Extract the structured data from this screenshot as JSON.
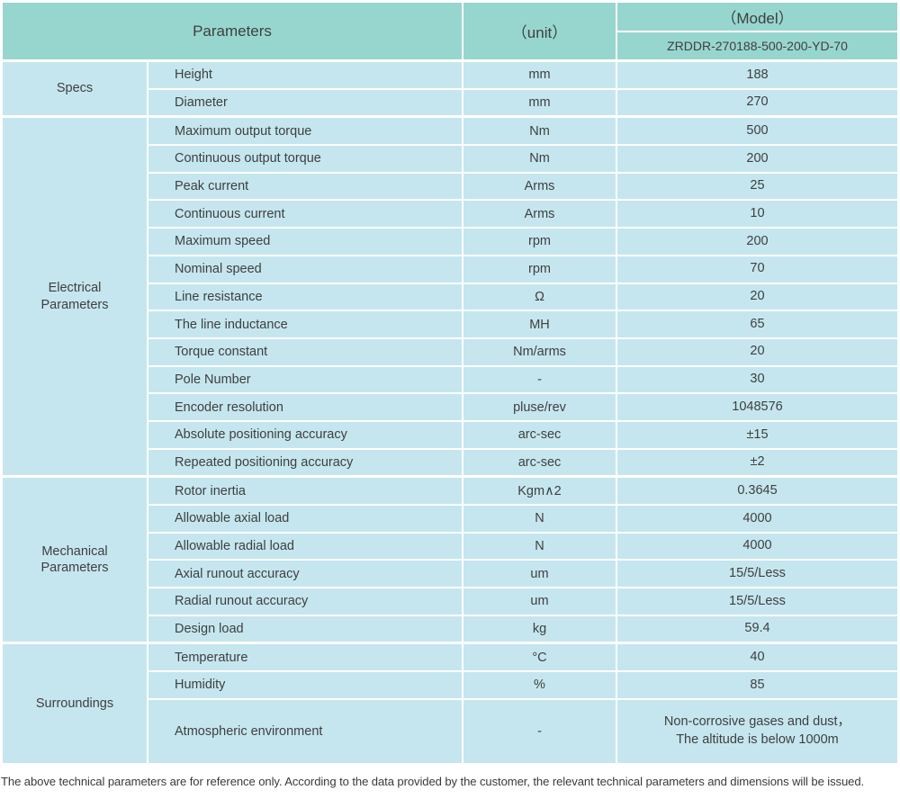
{
  "colors": {
    "header_bg": "#97d6ce",
    "body_bg": "#c5e6ef",
    "text": "#3f3f3f"
  },
  "header": {
    "parameters_label": "Parameters",
    "unit_label": "（unit）",
    "model_label": "（Model）",
    "model_value": "ZRDDR-270188-500-200-YD-70"
  },
  "sections": [
    {
      "id": "specs",
      "label": "Specs",
      "rows": [
        {
          "name": "Height",
          "unit": "mm",
          "value": "188"
        },
        {
          "name": "Diameter",
          "unit": "mm",
          "value": "270"
        }
      ]
    },
    {
      "id": "electrical-parameters",
      "label": "Electrical\nParameters",
      "rows": [
        {
          "name": "Maximum output torque",
          "unit": "Nm",
          "value": "500"
        },
        {
          "name": "Continuous output torque",
          "unit": "Nm",
          "value": "200"
        },
        {
          "name": "Peak current",
          "unit": "Arms",
          "value": "25"
        },
        {
          "name": "Continuous current",
          "unit": "Arms",
          "value": "10"
        },
        {
          "name": "Maximum speed",
          "unit": "rpm",
          "value": "200"
        },
        {
          "name": "Nominal speed",
          "unit": "rpm",
          "value": "70"
        },
        {
          "name": "Line resistance",
          "unit": "Ω",
          "value": "20"
        },
        {
          "name": "The line inductance",
          "unit": "MH",
          "value": "65"
        },
        {
          "name": "Torque constant",
          "unit": "Nm/arms",
          "value": "20"
        },
        {
          "name": "Pole Number",
          "unit": "-",
          "value": "30"
        },
        {
          "name": "Encoder resolution",
          "unit": "pluse/rev",
          "value": "1048576"
        },
        {
          "name": "Absolute positioning accuracy",
          "unit": "arc-sec",
          "value": "±15"
        },
        {
          "name": "Repeated positioning accuracy",
          "unit": "arc-sec",
          "value": "±2"
        }
      ]
    },
    {
      "id": "mechanical-parameters",
      "label": "Mechanical\nParameters",
      "rows": [
        {
          "name": "Rotor inertia",
          "unit": "Kgm∧2",
          "value": "0.3645"
        },
        {
          "name": "Allowable axial load",
          "unit": "N",
          "value": "4000"
        },
        {
          "name": "Allowable radial load",
          "unit": "N",
          "value": "4000"
        },
        {
          "name": "Axial runout accuracy",
          "unit": "um",
          "value": "15/5/Less"
        },
        {
          "name": "Radial runout accuracy",
          "unit": "um",
          "value": "15/5/Less"
        },
        {
          "name": "Design load",
          "unit": "kg",
          "value": "59.4"
        }
      ]
    },
    {
      "id": "surroundings",
      "label": "Surroundings",
      "rows": [
        {
          "name": "Temperature",
          "unit": "°C",
          "value": "40"
        },
        {
          "name": "Humidity",
          "unit": "%",
          "value": "85"
        },
        {
          "name": "Atmospheric environment",
          "unit": "-",
          "value": "Non-corrosive gases and dust，\nThe altitude is below 1000m",
          "tall": true
        }
      ]
    }
  ],
  "footer": {
    "note": "The above technical parameters are for reference only. According to the data provided by the customer, the relevant technical parameters and dimensions will be issued."
  }
}
